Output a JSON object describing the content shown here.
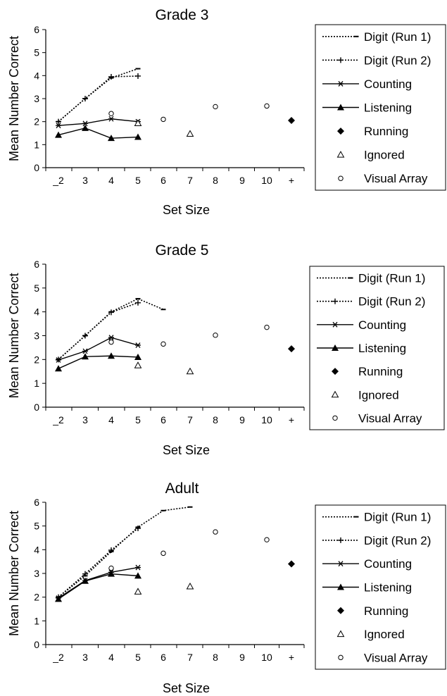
{
  "chart_data": [
    {
      "type": "line",
      "title": "Grade 3",
      "xlabel": "Set Size",
      "ylabel": "Mean Number Correct",
      "categories": [
        "_2",
        "3",
        "4",
        "5",
        "6",
        "7",
        "8",
        "9",
        "10",
        "+"
      ],
      "ylim": [
        0,
        6
      ],
      "yticks": [
        0,
        1,
        2,
        3,
        4,
        5,
        6
      ],
      "grid": false,
      "legend_position": "right",
      "legend": [
        "Digit (Run 1)",
        "Digit (Run 2)",
        "Counting",
        "Listening",
        "Running",
        "Ignored",
        "Visual Array"
      ],
      "series": [
        {
          "name": "Digit (Run 1)",
          "style": "dotted-dash",
          "points": [
            [
              1,
              2.0
            ],
            [
              2,
              3.0
            ],
            [
              3,
              3.9
            ],
            [
              4,
              4.3
            ]
          ]
        },
        {
          "name": "Digit (Run 2)",
          "style": "dotted-plus",
          "points": [
            [
              1,
              2.0
            ],
            [
              2,
              3.0
            ],
            [
              3,
              3.95
            ],
            [
              4,
              3.98
            ]
          ]
        },
        {
          "name": "Counting",
          "style": "solid-star",
          "points": [
            [
              1,
              1.83
            ],
            [
              2,
              1.92
            ],
            [
              3,
              2.12
            ],
            [
              4,
              2.0
            ]
          ]
        },
        {
          "name": "Listening",
          "style": "solid-triangle",
          "points": [
            [
              1,
              1.42
            ],
            [
              2,
              1.72
            ],
            [
              3,
              1.28
            ],
            [
              4,
              1.33
            ]
          ]
        },
        {
          "name": "Running",
          "style": "diamond",
          "points": [
            [
              10,
              2.05
            ]
          ]
        },
        {
          "name": "Ignored",
          "style": "open-triangle",
          "points": [
            [
              4,
              1.93
            ],
            [
              6,
              1.47
            ]
          ]
        },
        {
          "name": "Visual Array",
          "style": "open-circle",
          "points": [
            [
              3,
              2.35
            ],
            [
              5,
              2.1
            ],
            [
              7,
              2.65
            ],
            [
              9,
              2.68
            ]
          ]
        }
      ]
    },
    {
      "type": "line",
      "title": "Grade 5",
      "xlabel": "Set Size",
      "ylabel": "Mean Number Correct",
      "categories": [
        "_2",
        "3",
        "4",
        "5",
        "6",
        "7",
        "8",
        "9",
        "10",
        "+"
      ],
      "ylim": [
        0,
        6
      ],
      "yticks": [
        0,
        1,
        2,
        3,
        4,
        5,
        6
      ],
      "grid": false,
      "legend_position": "right",
      "legend": [
        "Digit (Run 1)",
        "Digit (Run 2)",
        "Counting",
        "Listening",
        "Running",
        "Ignored",
        "Visual Array"
      ],
      "series": [
        {
          "name": "Digit (Run 1)",
          "style": "dotted-dash",
          "points": [
            [
              1,
              2.0
            ],
            [
              2,
              3.0
            ],
            [
              3,
              4.0
            ],
            [
              4,
              4.55
            ],
            [
              5,
              4.1
            ]
          ]
        },
        {
          "name": "Digit (Run 2)",
          "style": "dotted-plus",
          "points": [
            [
              1,
              2.0
            ],
            [
              2,
              3.0
            ],
            [
              3,
              3.98
            ],
            [
              4,
              4.38
            ]
          ]
        },
        {
          "name": "Counting",
          "style": "solid-star",
          "points": [
            [
              1,
              1.98
            ],
            [
              2,
              2.35
            ],
            [
              3,
              2.92
            ],
            [
              4,
              2.6
            ]
          ]
        },
        {
          "name": "Listening",
          "style": "solid-triangle",
          "points": [
            [
              1,
              1.62
            ],
            [
              2,
              2.12
            ],
            [
              3,
              2.15
            ],
            [
              4,
              2.1
            ]
          ]
        },
        {
          "name": "Running",
          "style": "diamond",
          "points": [
            [
              10,
              2.45
            ]
          ]
        },
        {
          "name": "Ignored",
          "style": "open-triangle",
          "points": [
            [
              4,
              1.75
            ],
            [
              6,
              1.5
            ]
          ]
        },
        {
          "name": "Visual Array",
          "style": "open-circle",
          "points": [
            [
              3,
              2.73
            ],
            [
              5,
              2.65
            ],
            [
              7,
              3.02
            ],
            [
              9,
              3.35
            ]
          ]
        }
      ]
    },
    {
      "type": "line",
      "title": "Adult",
      "xlabel": "Set Size",
      "ylabel": "Mean Number Correct",
      "categories": [
        "_2",
        "3",
        "4",
        "5",
        "6",
        "7",
        "8",
        "9",
        "10",
        "+"
      ],
      "ylim": [
        0,
        6
      ],
      "yticks": [
        0,
        1,
        2,
        3,
        4,
        5,
        6
      ],
      "grid": false,
      "legend_position": "right",
      "legend": [
        "Digit (Run 1)",
        "Digit (Run 2)",
        "Counting",
        "Listening",
        "Running",
        "Ignored",
        "Visual Array"
      ],
      "series": [
        {
          "name": "Digit (Run 1)",
          "style": "dotted-dash",
          "points": [
            [
              1,
              2.0
            ],
            [
              2,
              2.9
            ],
            [
              3,
              3.92
            ],
            [
              4,
              4.95
            ],
            [
              5,
              5.65
            ],
            [
              6,
              5.8
            ]
          ]
        },
        {
          "name": "Digit (Run 2)",
          "style": "dotted-plus",
          "points": [
            [
              1,
              2.0
            ],
            [
              2,
              2.98
            ],
            [
              3,
              3.98
            ],
            [
              4,
              4.9
            ]
          ]
        },
        {
          "name": "Counting",
          "style": "solid-star",
          "points": [
            [
              1,
              1.96
            ],
            [
              2,
              2.7
            ],
            [
              3,
              3.05
            ],
            [
              4,
              3.25
            ]
          ]
        },
        {
          "name": "Listening",
          "style": "solid-triangle",
          "points": [
            [
              1,
              1.92
            ],
            [
              2,
              2.68
            ],
            [
              3,
              2.98
            ],
            [
              4,
              2.9
            ]
          ]
        },
        {
          "name": "Running",
          "style": "diamond",
          "points": [
            [
              10,
              3.4
            ]
          ]
        },
        {
          "name": "Ignored",
          "style": "open-triangle",
          "points": [
            [
              4,
              2.23
            ],
            [
              6,
              2.45
            ]
          ]
        },
        {
          "name": "Visual Array",
          "style": "open-circle",
          "points": [
            [
              3,
              3.22
            ],
            [
              5,
              3.85
            ],
            [
              7,
              4.75
            ],
            [
              9,
              4.42
            ]
          ]
        }
      ]
    }
  ]
}
